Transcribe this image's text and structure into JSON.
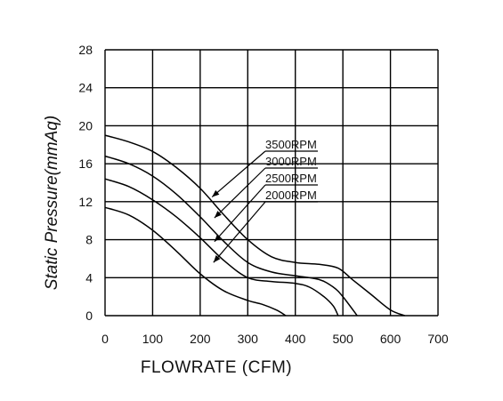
{
  "chart_data": {
    "type": "line",
    "xlabel": "FLOWRATE (CFM)",
    "ylabel": "Static Pressure(mmAq)",
    "xlim": [
      0,
      700
    ],
    "ylim": [
      0,
      28
    ],
    "xticks": [
      "0",
      "100",
      "200",
      "300",
      "400",
      "500",
      "600",
      "700"
    ],
    "yticks": [
      "0",
      "4",
      "8",
      "12",
      "16",
      "20",
      "24",
      "28"
    ],
    "grid": true,
    "series": [
      {
        "name": "3500RPM",
        "x": [
          0,
          50,
          100,
          150,
          200,
          250,
          300,
          350,
          400,
          450,
          490,
          520,
          560,
          600,
          630
        ],
        "y": [
          19,
          18.3,
          17.3,
          15.6,
          13.4,
          10.6,
          8,
          6.2,
          5.6,
          5.4,
          5,
          3.8,
          2.2,
          0.6,
          0
        ]
      },
      {
        "name": "3000RPM",
        "x": [
          0,
          50,
          100,
          150,
          200,
          250,
          300,
          350,
          400,
          450,
          480,
          500,
          530
        ],
        "y": [
          16.8,
          16,
          14.7,
          12.8,
          10.4,
          7.8,
          5.6,
          4.6,
          4.2,
          3.8,
          3,
          2,
          0
        ]
      },
      {
        "name": "2500RPM",
        "x": [
          0,
          50,
          100,
          150,
          200,
          250,
          300,
          350,
          400,
          430,
          460,
          480,
          490
        ],
        "y": [
          14.4,
          13.6,
          12.2,
          10.4,
          8.2,
          5.8,
          4,
          3.6,
          3.4,
          3,
          2,
          1,
          0
        ]
      },
      {
        "name": "2000RPM",
        "x": [
          0,
          50,
          100,
          150,
          200,
          250,
          300,
          330,
          360,
          380
        ],
        "y": [
          11.4,
          10.6,
          9,
          6.8,
          4.4,
          2.6,
          1.6,
          1.2,
          0.6,
          0
        ]
      }
    ],
    "annotations": [
      {
        "text": "3500RPM",
        "arrow_to": [
          225,
          12.5
        ]
      },
      {
        "text": "3000RPM",
        "arrow_to": [
          230,
          10.3
        ]
      },
      {
        "text": "2500RPM",
        "arrow_to": [
          230,
          7.8
        ]
      },
      {
        "text": "2000RPM",
        "arrow_to": [
          228,
          5.6
        ]
      }
    ]
  }
}
